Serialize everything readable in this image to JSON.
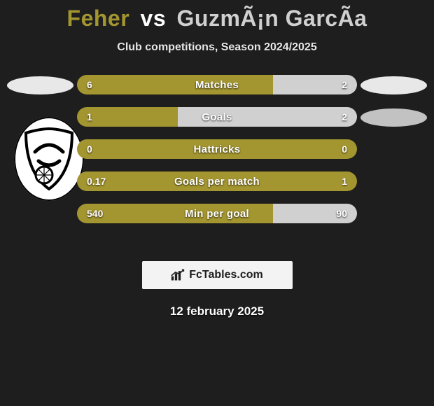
{
  "title": {
    "p1": "Feher",
    "vs": "vs",
    "p2": "GuzmÃ¡n GarcÃa"
  },
  "subtitle": "Club competitions, Season 2024/2025",
  "colors": {
    "left": "#a3952f",
    "right": "#d0d0d0",
    "bg": "#1e1e1e"
  },
  "rows": [
    {
      "label": "Matches",
      "left": "6",
      "right": "2",
      "left_pct": 70,
      "right_pct": 30
    },
    {
      "label": "Goals",
      "left": "1",
      "right": "2",
      "left_pct": 36,
      "right_pct": 64
    },
    {
      "label": "Hattricks",
      "left": "0",
      "right": "0",
      "left_pct": 100,
      "right_pct": 0
    },
    {
      "label": "Goals per match",
      "left": "0.17",
      "right": "1",
      "left_pct": 100,
      "right_pct": 0
    },
    {
      "label": "Min per goal",
      "left": "540",
      "right": "90",
      "left_pct": 70,
      "right_pct": 30
    }
  ],
  "footer_brand": "FcTables.com",
  "date": "12 february 2025"
}
